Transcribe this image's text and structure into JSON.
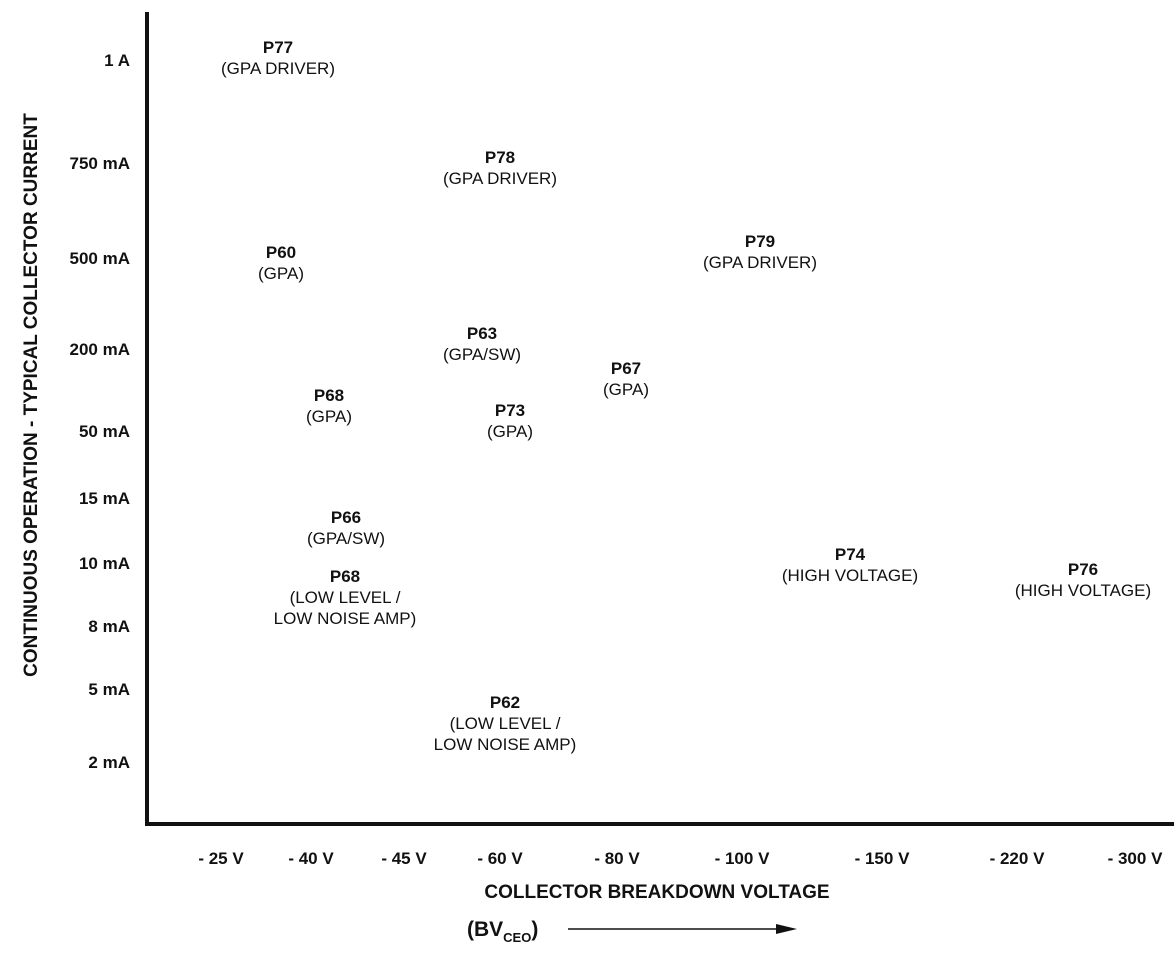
{
  "chart_data": {
    "type": "scatter",
    "title": "",
    "ylabel": "CONTINUOUS OPERATION - TYPICAL COLLECTOR CURRENT",
    "xlabel": "COLLECTOR BREAKDOWN VOLTAGE",
    "xlabel_sub_prefix": "(BV",
    "xlabel_sub_subscript": "CEO",
    "xlabel_sub_suffix": ")",
    "x_axis_arrow": true,
    "x_ticks": [
      "- 25 V",
      "- 40 V",
      "- 45 V",
      "- 60 V",
      "- 80 V",
      "- 100 V",
      "- 150 V",
      "- 220 V",
      "- 300 V"
    ],
    "y_ticks": [
      "1 A",
      "750  mA",
      "500  mA",
      "200  mA",
      "50  mA",
      "15  mA",
      "10  mA",
      "8  mA",
      "5  mA",
      "2  mA"
    ],
    "grid": false,
    "devices": [
      {
        "name": "P77",
        "desc": [
          "(GPA DRIVER)"
        ],
        "x": "- 25 V",
        "y": "1 A"
      },
      {
        "name": "P78",
        "desc": [
          "(GPA DRIVER)"
        ],
        "x": "- 60 V",
        "y": "750  mA"
      },
      {
        "name": "P60",
        "desc": [
          "(GPA)"
        ],
        "x": "- 40 V",
        "y": "500  mA"
      },
      {
        "name": "P79",
        "desc": [
          "(GPA DRIVER)"
        ],
        "x": "- 100 V",
        "y": "500  mA"
      },
      {
        "name": "P63",
        "desc": [
          "(GPA/SW)"
        ],
        "x": "- 45 V",
        "y": "200  mA"
      },
      {
        "name": "P67",
        "desc": [
          "(GPA)"
        ],
        "x": "- 80 V",
        "y": "200  mA"
      },
      {
        "name": "P68",
        "desc": [
          "(GPA)"
        ],
        "x": "- 40 V",
        "y": "50  mA"
      },
      {
        "name": "P73",
        "desc": [
          "(GPA)"
        ],
        "x": "- 60 V",
        "y": "50  mA"
      },
      {
        "name": "P66",
        "desc": [
          "(GPA/SW)"
        ],
        "x": "- 40 V",
        "y": "15  mA"
      },
      {
        "name": "P68",
        "desc": [
          "(LOW LEVEL /",
          "LOW NOISE AMP)"
        ],
        "x": "- 40 V",
        "y": "8  mA"
      },
      {
        "name": "P74",
        "desc": [
          "(HIGH VOLTAGE)"
        ],
        "x": "- 150 V",
        "y": "10  mA"
      },
      {
        "name": "P76",
        "desc": [
          "(HIGH VOLTAGE)"
        ],
        "x": "- 300 V",
        "y": "10  mA"
      },
      {
        "name": "P62",
        "desc": [
          "(LOW LEVEL /",
          "LOW NOISE AMP)"
        ],
        "x": "- 60 V",
        "y": "2  mA"
      }
    ]
  },
  "colors": {
    "ink": "#111111",
    "background": "#ffffff"
  }
}
